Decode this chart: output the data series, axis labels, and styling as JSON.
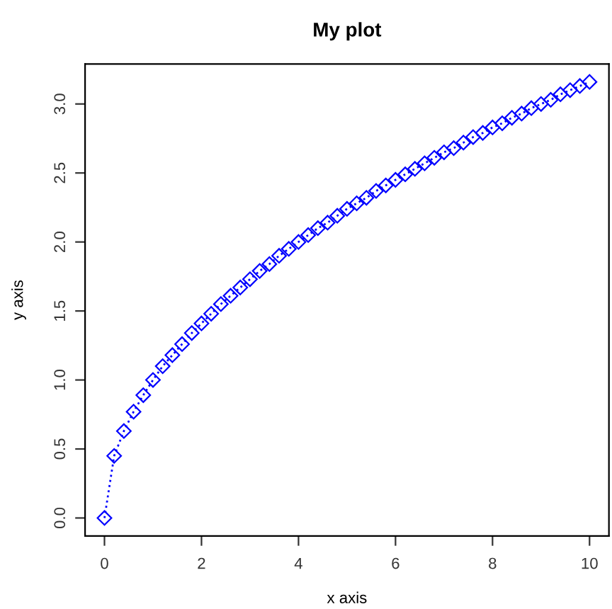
{
  "chart_data": {
    "type": "line",
    "title": "My plot",
    "xlabel": "x axis",
    "ylabel": "y axis",
    "x": [
      0,
      0.2,
      0.4,
      0.6,
      0.8,
      1.0,
      1.2,
      1.4,
      1.6,
      1.8,
      2.0,
      2.2,
      2.4,
      2.6,
      2.8,
      3.0,
      3.2,
      3.4,
      3.6,
      3.8,
      4.0,
      4.2,
      4.4,
      4.6,
      4.8,
      5.0,
      5.2,
      5.4,
      5.6,
      5.8,
      6.0,
      6.2,
      6.4,
      6.6,
      6.8,
      7.0,
      7.2,
      7.4,
      7.6,
      7.8,
      8.0,
      8.2,
      8.4,
      8.6,
      8.8,
      9.0,
      9.2,
      9.4,
      9.6,
      9.8,
      10.0
    ],
    "series": [
      {
        "color": "#0000ff",
        "values": [
          0,
          0.45,
          0.63,
          0.77,
          0.89,
          1.0,
          1.1,
          1.18,
          1.26,
          1.34,
          1.41,
          1.48,
          1.55,
          1.61,
          1.67,
          1.73,
          1.79,
          1.84,
          1.9,
          1.95,
          2.0,
          2.05,
          2.1,
          2.14,
          2.19,
          2.24,
          2.28,
          2.32,
          2.37,
          2.41,
          2.45,
          2.49,
          2.53,
          2.57,
          2.61,
          2.65,
          2.68,
          2.72,
          2.76,
          2.79,
          2.83,
          2.86,
          2.9,
          2.93,
          2.97,
          3.0,
          3.03,
          3.07,
          3.1,
          3.13,
          3.16
        ]
      }
    ],
    "xlim": [
      -0.4,
      10.4
    ],
    "ylim": [
      -0.13,
      3.29
    ],
    "xticks": [
      0,
      2,
      4,
      6,
      8,
      10
    ],
    "yticks": [
      {
        "value": 0,
        "label": "0.0"
      },
      {
        "value": 0.5,
        "label": "0.5"
      },
      {
        "value": 1,
        "label": "1.0"
      },
      {
        "value": 1.5,
        "label": "1.5"
      },
      {
        "value": 2,
        "label": "2.0"
      },
      {
        "value": 2.5,
        "label": "2.5"
      },
      {
        "value": 3,
        "label": "3.0"
      }
    ],
    "marker": "diamond",
    "line_style": "dotted",
    "grid": false,
    "legend": false
  }
}
